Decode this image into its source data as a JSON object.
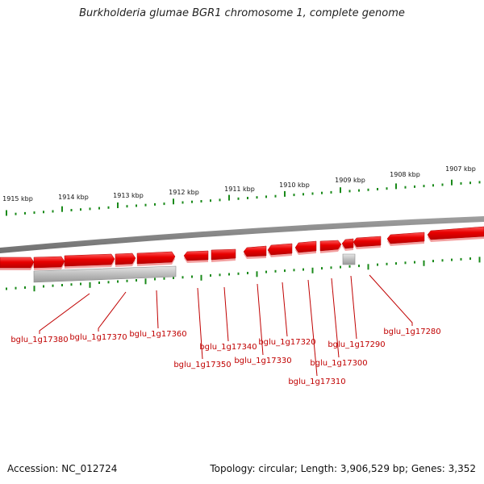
{
  "title": "Burkholderia glumae BGR1 chromosome 1, complete genome",
  "accession": "Accession: NC_012724",
  "topology": "Topology: circular; Length: 3,906,529 bp; Genes: 3,352",
  "colors": {
    "gene_forward": "#e80000",
    "gene_other": "#c8c8c8",
    "backbone": "#8a8a8a",
    "tick": "#1a8a1a",
    "label": "#c00000"
  },
  "scale_labels": [
    "1915 kbp",
    "1914 kbp",
    "1913 kbp",
    "1912 kbp",
    "1911 kbp",
    "1910 kbp",
    "1909 kbp",
    "1908 kbp",
    "1907 kbp"
  ],
  "gene_labels": [
    "bglu_1g17380",
    "bglu_1g17370",
    "bglu_1g17360",
    "bglu_1g17350",
    "bglu_1g17340",
    "bglu_1g17330",
    "bglu_1g17320",
    "bglu_1g17310",
    "bglu_1g17300",
    "bglu_1g17290",
    "bglu_1g17280"
  ]
}
